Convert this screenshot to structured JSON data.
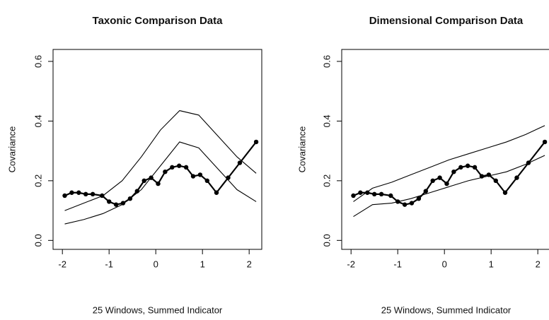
{
  "chart_data": [
    {
      "type": "line",
      "title": "Taxonic Comparison Data",
      "xlabel": "25 Windows, Summed Indicator",
      "ylabel": "Covariance",
      "xlim": [
        -2.2,
        2.27
      ],
      "ylim": [
        -0.03,
        0.64
      ],
      "xticks": [
        -2,
        -1,
        0,
        1,
        2
      ],
      "yticks": [
        {
          "value": 0,
          "label": "0.0"
        },
        0.2,
        0.4,
        0.6
      ],
      "series": [
        {
          "color": "#000000",
          "markers": true,
          "x": [
            -1.95,
            -1.8,
            -1.65,
            -1.5,
            -1.35,
            -1.15,
            -1.0,
            -0.85,
            -0.7,
            -0.55,
            -0.4,
            -0.25,
            -0.1,
            0.05,
            0.2,
            0.35,
            0.5,
            0.65,
            0.8,
            0.95,
            1.1,
            1.3,
            1.55,
            1.8,
            2.15
          ],
          "values": [
            0.15,
            0.16,
            0.16,
            0.155,
            0.155,
            0.15,
            0.13,
            0.12,
            0.125,
            0.14,
            0.165,
            0.2,
            0.21,
            0.19,
            0.23,
            0.245,
            0.25,
            0.245,
            0.215,
            0.22,
            0.2,
            0.16,
            0.21,
            0.26,
            0.33
          ]
        },
        {
          "color": "#000000",
          "markers": false,
          "x": [
            -1.95,
            -1.54,
            -1.13,
            -0.72,
            -0.31,
            0.1,
            0.51,
            0.92,
            1.33,
            1.74,
            2.15
          ],
          "values": [
            0.1,
            0.125,
            0.15,
            0.2,
            0.28,
            0.37,
            0.435,
            0.42,
            0.35,
            0.28,
            0.225
          ]
        },
        {
          "color": "#000000",
          "markers": false,
          "x": [
            -1.95,
            -1.54,
            -1.13,
            -0.72,
            -0.31,
            0.1,
            0.51,
            0.92,
            1.33,
            1.74,
            2.15
          ],
          "values": [
            0.055,
            0.07,
            0.09,
            0.12,
            0.17,
            0.25,
            0.33,
            0.31,
            0.24,
            0.17,
            0.13
          ]
        }
      ]
    },
    {
      "type": "line",
      "title": "Dimensional Comparison Data",
      "xlabel": "25 Windows, Summed Indicator",
      "ylabel": "Covariance",
      "xlim": [
        -2.2,
        2.27
      ],
      "ylim": [
        -0.03,
        0.64
      ],
      "xticks": [
        -2,
        -1,
        0,
        1,
        2
      ],
      "yticks": [
        {
          "value": 0,
          "label": "0.0"
        },
        0.2,
        0.4,
        0.6
      ],
      "series": [
        {
          "color": "#000000",
          "markers": true,
          "x": [
            -1.95,
            -1.8,
            -1.65,
            -1.5,
            -1.35,
            -1.15,
            -1.0,
            -0.85,
            -0.7,
            -0.55,
            -0.4,
            -0.25,
            -0.1,
            0.05,
            0.2,
            0.35,
            0.5,
            0.65,
            0.8,
            0.95,
            1.1,
            1.3,
            1.55,
            1.8,
            2.15
          ],
          "values": [
            0.15,
            0.16,
            0.16,
            0.155,
            0.155,
            0.15,
            0.13,
            0.12,
            0.125,
            0.14,
            0.165,
            0.2,
            0.21,
            0.19,
            0.23,
            0.245,
            0.25,
            0.245,
            0.215,
            0.22,
            0.2,
            0.16,
            0.21,
            0.26,
            0.33
          ]
        },
        {
          "color": "#000000",
          "markers": false,
          "x": [
            -1.95,
            -1.54,
            -1.13,
            -0.72,
            -0.31,
            0.1,
            0.51,
            0.92,
            1.33,
            1.74,
            2.15
          ],
          "values": [
            0.13,
            0.175,
            0.195,
            0.22,
            0.245,
            0.27,
            0.29,
            0.31,
            0.33,
            0.355,
            0.385
          ]
        },
        {
          "color": "#000000",
          "markers": false,
          "x": [
            -1.95,
            -1.54,
            -1.13,
            -0.72,
            -0.31,
            0.1,
            0.51,
            0.92,
            1.33,
            1.74,
            2.15
          ],
          "values": [
            0.08,
            0.12,
            0.125,
            0.14,
            0.16,
            0.18,
            0.2,
            0.215,
            0.23,
            0.255,
            0.285
          ]
        }
      ]
    }
  ]
}
